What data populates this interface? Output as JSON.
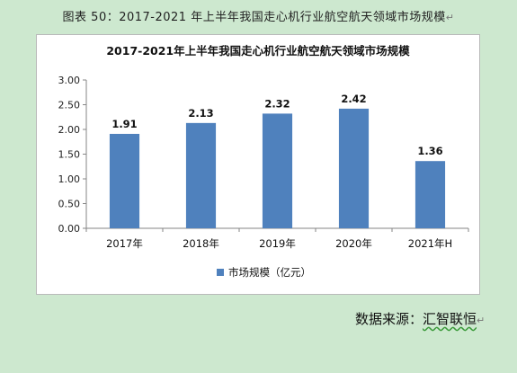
{
  "caption": "图表 50：2017-2021 年上半年我国走心机行业航空航天领域市场规模",
  "caption_mark": "↵",
  "source": {
    "label": "数据来源：",
    "brand": "汇智联恒",
    "mark": "↵"
  },
  "colors": {
    "background": "#cde8cf",
    "bar": "#4f81bd"
  },
  "chart_data": {
    "type": "bar",
    "title": "2017-2021年上半年我国走心机行业航空航天领域市场规模",
    "categories": [
      "2017年",
      "2018年",
      "2019年",
      "2020年",
      "2021年H"
    ],
    "series": [
      {
        "name": "市场规模（亿元）",
        "values": [
          1.91,
          2.13,
          2.32,
          2.42,
          1.36
        ]
      }
    ],
    "ylim": [
      0,
      3.0
    ],
    "yticks": [
      "0.00",
      "0.50",
      "1.00",
      "1.50",
      "2.00",
      "2.50",
      "3.00"
    ],
    "data_labels": [
      "1.91",
      "2.13",
      "2.32",
      "2.42",
      "1.36"
    ],
    "grid": false,
    "legend_position": "bottom"
  }
}
